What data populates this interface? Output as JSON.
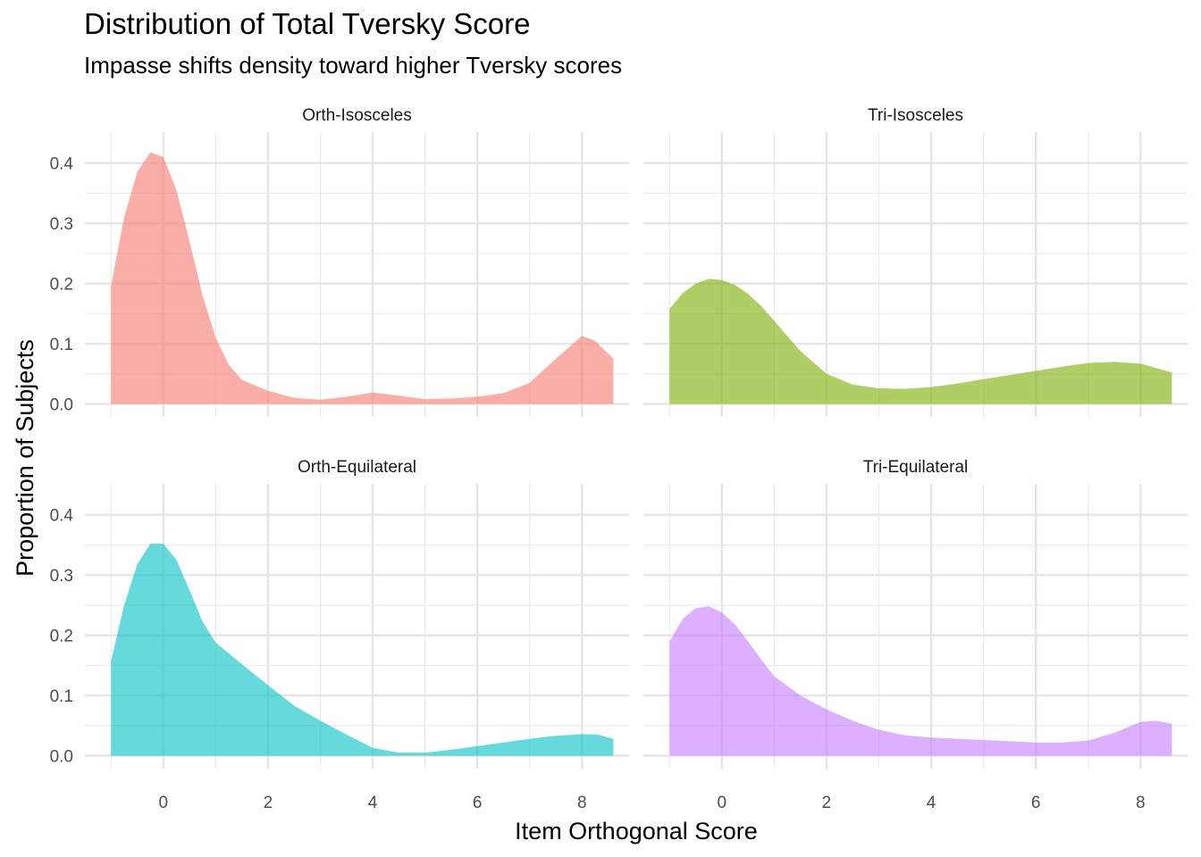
{
  "chart_data": {
    "type": "area",
    "title": "Distribution of Total Tversky Score",
    "subtitle": "Impasse shifts density toward higher Tversky scores",
    "xlabel": "Item Orthogonal Score",
    "ylabel": "Proportion of Subjects",
    "xlim": [
      -1.5,
      8.9
    ],
    "ylim": [
      -0.0215,
      0.4515
    ],
    "x_ticks": [
      0,
      2,
      4,
      6,
      8
    ],
    "y_ticks": [
      0.0,
      0.1,
      0.2,
      0.3,
      0.4
    ],
    "x_tick_labels": [
      "0",
      "2",
      "4",
      "6",
      "8"
    ],
    "y_tick_labels": [
      "0.0",
      "0.1",
      "0.2",
      "0.3",
      "0.4"
    ],
    "grid": true,
    "legend": "none",
    "panels": [
      {
        "name": "Orth-Isosceles",
        "color": "#F8766D",
        "points": [
          [
            -1,
            0.196
          ],
          [
            -0.75,
            0.31
          ],
          [
            -0.5,
            0.385
          ],
          [
            -0.25,
            0.418
          ],
          [
            0,
            0.41
          ],
          [
            0.25,
            0.355
          ],
          [
            0.5,
            0.27
          ],
          [
            0.75,
            0.18
          ],
          [
            1,
            0.11
          ],
          [
            1.25,
            0.065
          ],
          [
            1.5,
            0.04
          ],
          [
            2,
            0.022
          ],
          [
            2.5,
            0.01
          ],
          [
            3,
            0.007
          ],
          [
            3.5,
            0.012
          ],
          [
            4,
            0.019
          ],
          [
            4.5,
            0.014
          ],
          [
            5,
            0.008
          ],
          [
            5.5,
            0.009
          ],
          [
            6,
            0.012
          ],
          [
            6.5,
            0.018
          ],
          [
            7,
            0.035
          ],
          [
            7.5,
            0.075
          ],
          [
            8,
            0.113
          ],
          [
            8.25,
            0.105
          ],
          [
            8.6,
            0.075
          ]
        ]
      },
      {
        "name": "Tri-Isosceles",
        "color": "#7CAE00",
        "points": [
          [
            -1,
            0.158
          ],
          [
            -0.75,
            0.184
          ],
          [
            -0.5,
            0.2
          ],
          [
            -0.25,
            0.208
          ],
          [
            0,
            0.206
          ],
          [
            0.25,
            0.198
          ],
          [
            0.5,
            0.183
          ],
          [
            0.75,
            0.163
          ],
          [
            1,
            0.138
          ],
          [
            1.5,
            0.088
          ],
          [
            2,
            0.05
          ],
          [
            2.5,
            0.032
          ],
          [
            3,
            0.026
          ],
          [
            3.5,
            0.025
          ],
          [
            4,
            0.028
          ],
          [
            4.5,
            0.034
          ],
          [
            5,
            0.041
          ],
          [
            5.5,
            0.048
          ],
          [
            6,
            0.055
          ],
          [
            6.5,
            0.062
          ],
          [
            7,
            0.068
          ],
          [
            7.5,
            0.07
          ],
          [
            8,
            0.067
          ],
          [
            8.6,
            0.052
          ]
        ]
      },
      {
        "name": "Orth-Equilateral",
        "color": "#00BFC4",
        "points": [
          [
            -1,
            0.157
          ],
          [
            -0.75,
            0.25
          ],
          [
            -0.5,
            0.318
          ],
          [
            -0.25,
            0.352
          ],
          [
            0,
            0.352
          ],
          [
            0.25,
            0.325
          ],
          [
            0.5,
            0.275
          ],
          [
            0.75,
            0.222
          ],
          [
            1,
            0.188
          ],
          [
            1.5,
            0.152
          ],
          [
            2,
            0.117
          ],
          [
            2.5,
            0.083
          ],
          [
            3,
            0.058
          ],
          [
            3.5,
            0.035
          ],
          [
            4,
            0.013
          ],
          [
            4.5,
            0.005
          ],
          [
            5,
            0.005
          ],
          [
            5.5,
            0.01
          ],
          [
            6,
            0.016
          ],
          [
            6.5,
            0.022
          ],
          [
            7,
            0.028
          ],
          [
            7.5,
            0.033
          ],
          [
            8,
            0.036
          ],
          [
            8.3,
            0.035
          ],
          [
            8.6,
            0.028
          ]
        ]
      },
      {
        "name": "Tri-Equilateral",
        "color": "#C77CFF",
        "points": [
          [
            -1,
            0.19
          ],
          [
            -0.75,
            0.227
          ],
          [
            -0.5,
            0.245
          ],
          [
            -0.25,
            0.248
          ],
          [
            0,
            0.238
          ],
          [
            0.25,
            0.218
          ],
          [
            0.5,
            0.19
          ],
          [
            0.75,
            0.16
          ],
          [
            1,
            0.132
          ],
          [
            1.5,
            0.1
          ],
          [
            2,
            0.077
          ],
          [
            2.5,
            0.058
          ],
          [
            3,
            0.043
          ],
          [
            3.5,
            0.034
          ],
          [
            4,
            0.03
          ],
          [
            4.5,
            0.028
          ],
          [
            5,
            0.026
          ],
          [
            5.5,
            0.024
          ],
          [
            6,
            0.022
          ],
          [
            6.5,
            0.022
          ],
          [
            7,
            0.025
          ],
          [
            7.5,
            0.038
          ],
          [
            8,
            0.056
          ],
          [
            8.3,
            0.058
          ],
          [
            8.6,
            0.053
          ]
        ]
      }
    ]
  }
}
